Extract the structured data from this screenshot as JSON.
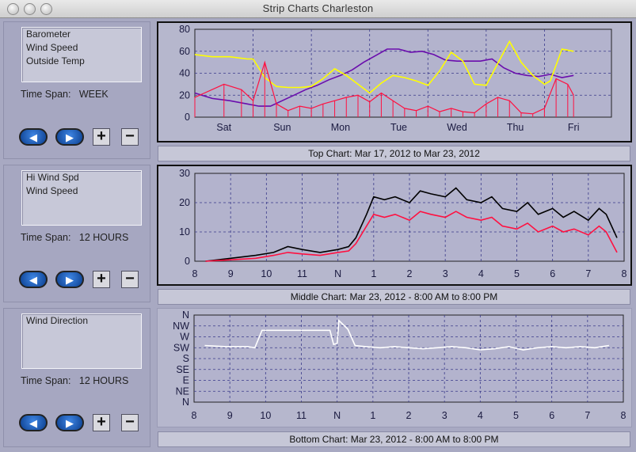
{
  "window": {
    "title": "Strip Charts    Charleston"
  },
  "panels": [
    {
      "series": [
        "Barometer",
        "Wind Speed",
        "Outside Temp"
      ],
      "span_label": "Time Span:",
      "span_value": "WEEK",
      "caption": "Top Chart:  Mar 17, 2012  to  Mar 23, 2012"
    },
    {
      "series": [
        "Hi Wind Spd",
        "Wind Speed"
      ],
      "span_label": "Time Span:",
      "span_value": "12 HOURS",
      "caption": "Middle Chart:  Mar 23, 2012 - 8:00 AM  to  8:00 PM"
    },
    {
      "series": [
        "Wind Direction"
      ],
      "span_label": "Time Span:",
      "span_value": "12 HOURS",
      "caption": "Bottom Chart:  Mar 23, 2012 - 8:00 AM  to  8:00 PM"
    }
  ],
  "controls": {
    "back_icon": "left-arrow-icon",
    "forward_icon": "right-arrow-icon",
    "zoom_in": "+",
    "zoom_out": "−"
  },
  "chart_data": [
    {
      "type": "line",
      "ylim": [
        0,
        80
      ],
      "yticks": [
        "0",
        "20",
        "40",
        "60",
        "80"
      ],
      "categories": [
        "Sat",
        "Sun",
        "Mon",
        "Tue",
        "Wed",
        "Thu",
        "Fri"
      ],
      "colors": {
        "Barometer": "#6a0dad",
        "Wind Speed": "#ff1040",
        "Outside Temp": "#ffff00"
      },
      "series": [
        {
          "name": "Barometer",
          "x": [
            0,
            0.3,
            0.6,
            0.9,
            1.1,
            1.3,
            1.5,
            1.7,
            1.9,
            2.1,
            2.3,
            2.5,
            2.7,
            2.9,
            3.1,
            3.3,
            3.5,
            3.7,
            3.9,
            4.1,
            4.3,
            4.5,
            4.7,
            4.9,
            5.1,
            5.3,
            5.5,
            5.7,
            5.9,
            6.1,
            6.3,
            6.5
          ],
          "y": [
            22,
            17,
            15,
            12,
            10,
            10,
            15,
            20,
            25,
            29,
            34,
            38,
            43,
            50,
            56,
            62,
            62,
            59,
            60,
            57,
            52,
            51,
            51,
            51,
            53,
            45,
            40,
            38,
            37,
            39,
            36,
            38
          ]
        },
        {
          "name": "Outside Temp",
          "x": [
            0,
            0.3,
            0.6,
            0.9,
            1.0,
            1.2,
            1.4,
            1.6,
            1.8,
            2.0,
            2.2,
            2.4,
            2.6,
            2.8,
            3.0,
            3.2,
            3.4,
            3.6,
            3.8,
            4.0,
            4.2,
            4.4,
            4.6,
            4.8,
            5.0,
            5.2,
            5.4,
            5.6,
            5.8,
            6.0,
            6.1,
            6.3,
            6.5
          ],
          "y": [
            57,
            55,
            55,
            53,
            53,
            36,
            28,
            27,
            27,
            28,
            35,
            44,
            38,
            30,
            22,
            31,
            38,
            36,
            33,
            29,
            42,
            59,
            51,
            30,
            29,
            49,
            69,
            50,
            38,
            30,
            33,
            62,
            60
          ]
        },
        {
          "name": "Wind Speed",
          "x": [
            0,
            0.5,
            0.8,
            1.0,
            1.2,
            1.4,
            1.6,
            1.8,
            2.0,
            2.2,
            2.4,
            2.6,
            2.8,
            3.0,
            3.2,
            3.4,
            3.6,
            3.8,
            4.0,
            4.2,
            4.4,
            4.6,
            4.8,
            5.0,
            5.2,
            5.4,
            5.6,
            5.8,
            6.0,
            6.2,
            6.4,
            6.5
          ],
          "y": [
            18,
            30,
            25,
            15,
            50,
            12,
            6,
            10,
            8,
            12,
            15,
            18,
            20,
            14,
            22,
            15,
            8,
            6,
            10,
            5,
            8,
            5,
            4,
            12,
            18,
            15,
            4,
            3,
            8,
            35,
            30,
            20
          ]
        }
      ]
    },
    {
      "type": "line",
      "ylim": [
        0,
        30
      ],
      "yticks": [
        "0",
        "10",
        "20",
        "30"
      ],
      "categories": [
        "8",
        "9",
        "10",
        "11",
        "N",
        "1",
        "2",
        "3",
        "4",
        "5",
        "6",
        "7",
        "8"
      ],
      "colors": {
        "Hi Wind Spd": "#000000",
        "Wind Speed": "#ff1040"
      },
      "series": [
        {
          "name": "Hi Wind Spd",
          "x": [
            0.3,
            1,
            1.7,
            2.2,
            2.6,
            3,
            3.5,
            4,
            4.3,
            4.5,
            4.8,
            5,
            5.3,
            5.6,
            6,
            6.3,
            6.6,
            7,
            7.3,
            7.6,
            8,
            8.3,
            8.6,
            9,
            9.3,
            9.6,
            10,
            10.3,
            10.6,
            11,
            11.3,
            11.5,
            11.8
          ],
          "y": [
            0,
            1,
            2,
            3,
            5,
            4,
            3,
            4,
            5,
            8,
            16,
            22,
            21,
            22,
            20,
            24,
            23,
            22,
            25,
            21,
            20,
            22,
            18,
            17,
            20,
            16,
            18,
            15,
            17,
            14,
            18,
            16,
            8
          ]
        },
        {
          "name": "Wind Speed",
          "x": [
            0.3,
            1,
            1.7,
            2.2,
            2.6,
            3,
            3.5,
            4,
            4.3,
            4.5,
            4.8,
            5,
            5.3,
            5.6,
            6,
            6.3,
            6.6,
            7,
            7.3,
            7.6,
            8,
            8.3,
            8.6,
            9,
            9.3,
            9.6,
            10,
            10.3,
            10.6,
            11,
            11.3,
            11.5,
            11.8
          ],
          "y": [
            0,
            0.5,
            1,
            2,
            3,
            2.5,
            2,
            3,
            3.5,
            6,
            12,
            16,
            15,
            16,
            14,
            17,
            16,
            15,
            17,
            15,
            14,
            15,
            12,
            11,
            13,
            10,
            12,
            10,
            11,
            9,
            12,
            10,
            3
          ]
        }
      ]
    },
    {
      "type": "scatter",
      "yticks": [
        "N",
        "NW",
        "W",
        "SW",
        "S",
        "SE",
        "E",
        "NE",
        "N"
      ],
      "categories": [
        "8",
        "9",
        "10",
        "11",
        "N",
        "1",
        "2",
        "3",
        "4",
        "5",
        "6",
        "7",
        "8"
      ],
      "colors": {
        "Wind Direction": "#ffffff"
      },
      "series": [
        {
          "name": "Wind Direction",
          "x": [
            0.3,
            0.9,
            1.5,
            1.7,
            1.8,
            1.9,
            2.2,
            2.6,
            3.0,
            3.4,
            3.8,
            3.9,
            4.0,
            4.05,
            4.3,
            4.5,
            4.8,
            5.2,
            5.6,
            6.0,
            6.4,
            6.8,
            7.2,
            7.6,
            8.0,
            8.4,
            8.8,
            9.2,
            9.6,
            10.0,
            10.4,
            10.8,
            11.2,
            11.6
          ],
          "y": [
            2.8,
            2.9,
            2.9,
            3.0,
            2.2,
            1.4,
            1.4,
            1.4,
            1.4,
            1.4,
            1.4,
            2.7,
            2.6,
            0.5,
            1.3,
            2.8,
            2.9,
            3.0,
            2.9,
            3.0,
            3.1,
            3.0,
            2.9,
            3.0,
            3.2,
            3.1,
            2.9,
            3.2,
            3.0,
            2.9,
            3.0,
            2.9,
            3.0,
            2.8
          ]
        }
      ]
    }
  ]
}
